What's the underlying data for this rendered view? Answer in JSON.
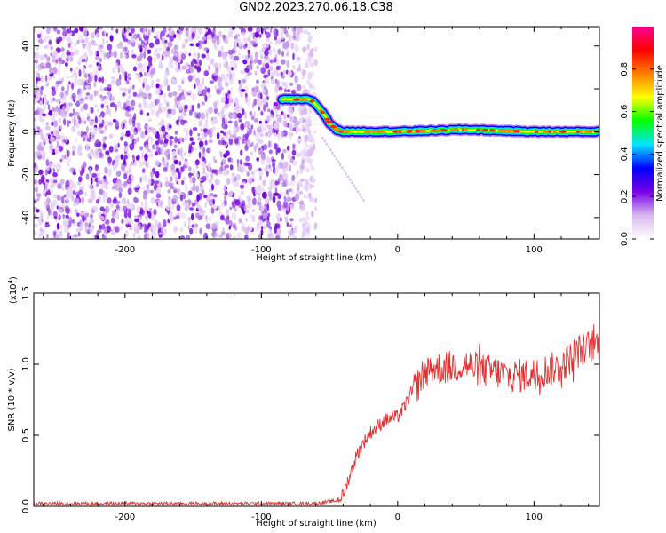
{
  "title": "GN02.2023.270.06.18.C38",
  "chart_data": [
    {
      "type": "heatmap",
      "xlabel": "Height of straight line (km)",
      "ylabel": "Frequency (Hz)",
      "xlim": [
        -267,
        148
      ],
      "ylim": [
        -50,
        49
      ],
      "xticks": [
        -200,
        -100,
        0,
        100
      ],
      "xticklabels": [
        "-200",
        "-100",
        "0",
        "100"
      ],
      "yticks": [
        -40,
        -20,
        0,
        20,
        40
      ],
      "yticklabels": [
        "-40",
        "-20",
        "0",
        "20",
        "40"
      ],
      "colorbar": {
        "label": "Normalized spectral amplitude",
        "range": [
          0,
          1
        ],
        "ticks": [
          0.0,
          0.2,
          0.4,
          0.6,
          0.8
        ],
        "ticklabels": [
          "0.0",
          "0.2",
          "0.4",
          "0.6",
          "0.8"
        ],
        "colormap": [
          "#ffffff",
          "#d9b8f0",
          "#7a00e6",
          "#0000ff",
          "#00e5ff",
          "#00ff00",
          "#ffff00",
          "#ff8000",
          "#ff0000",
          "#ff0090"
        ]
      },
      "noise_region_x": [
        -267,
        -60
      ],
      "signal_path": {
        "x": [
          -85,
          -65,
          -62,
          -55,
          -50,
          -45,
          -40,
          -30,
          0,
          50,
          100,
          148
        ],
        "y": [
          15,
          15,
          14,
          9,
          4,
          1,
          0,
          0,
          0,
          1,
          0,
          0
        ]
      },
      "faint_trace": {
        "x": [
          -55,
          -25
        ],
        "y": [
          -3,
          -32
        ]
      }
    },
    {
      "type": "line",
      "xlabel": "Height of straight line (km)",
      "ylabel": "SNR (10 * v/v)",
      "yexponent_label": "(x10",
      "yexponent_power": "4",
      "yexponent_close": ")",
      "xlim": [
        -267,
        148
      ],
      "ylim": [
        0.0,
        1.5
      ],
      "xticks": [
        -200,
        -100,
        0,
        100
      ],
      "xticklabels": [
        "-200",
        "-100",
        "0",
        "100"
      ],
      "yticks": [
        0.0,
        0.5,
        1.0,
        1.5
      ],
      "yticklabels": [
        "0.0",
        "0.5",
        "1.0",
        "1.5"
      ],
      "color": "#e53030",
      "series": [
        {
          "x": [
            -267,
            -200,
            -100,
            -60,
            -45,
            -40,
            -35,
            -30,
            -25,
            -20,
            -15,
            -10,
            -5,
            0,
            5,
            10,
            15,
            20,
            25,
            30,
            40,
            50,
            60,
            70,
            80,
            90,
            100,
            110,
            120,
            130,
            140,
            148
          ],
          "y": [
            0.02,
            0.02,
            0.02,
            0.02,
            0.04,
            0.08,
            0.22,
            0.36,
            0.45,
            0.52,
            0.56,
            0.6,
            0.62,
            0.63,
            0.7,
            0.8,
            0.86,
            0.95,
            0.98,
            0.97,
            0.98,
            1.0,
            0.96,
            0.95,
            0.92,
            0.92,
            0.93,
            0.96,
            0.98,
            1.08,
            1.12,
            1.15
          ]
        }
      ]
    }
  ]
}
